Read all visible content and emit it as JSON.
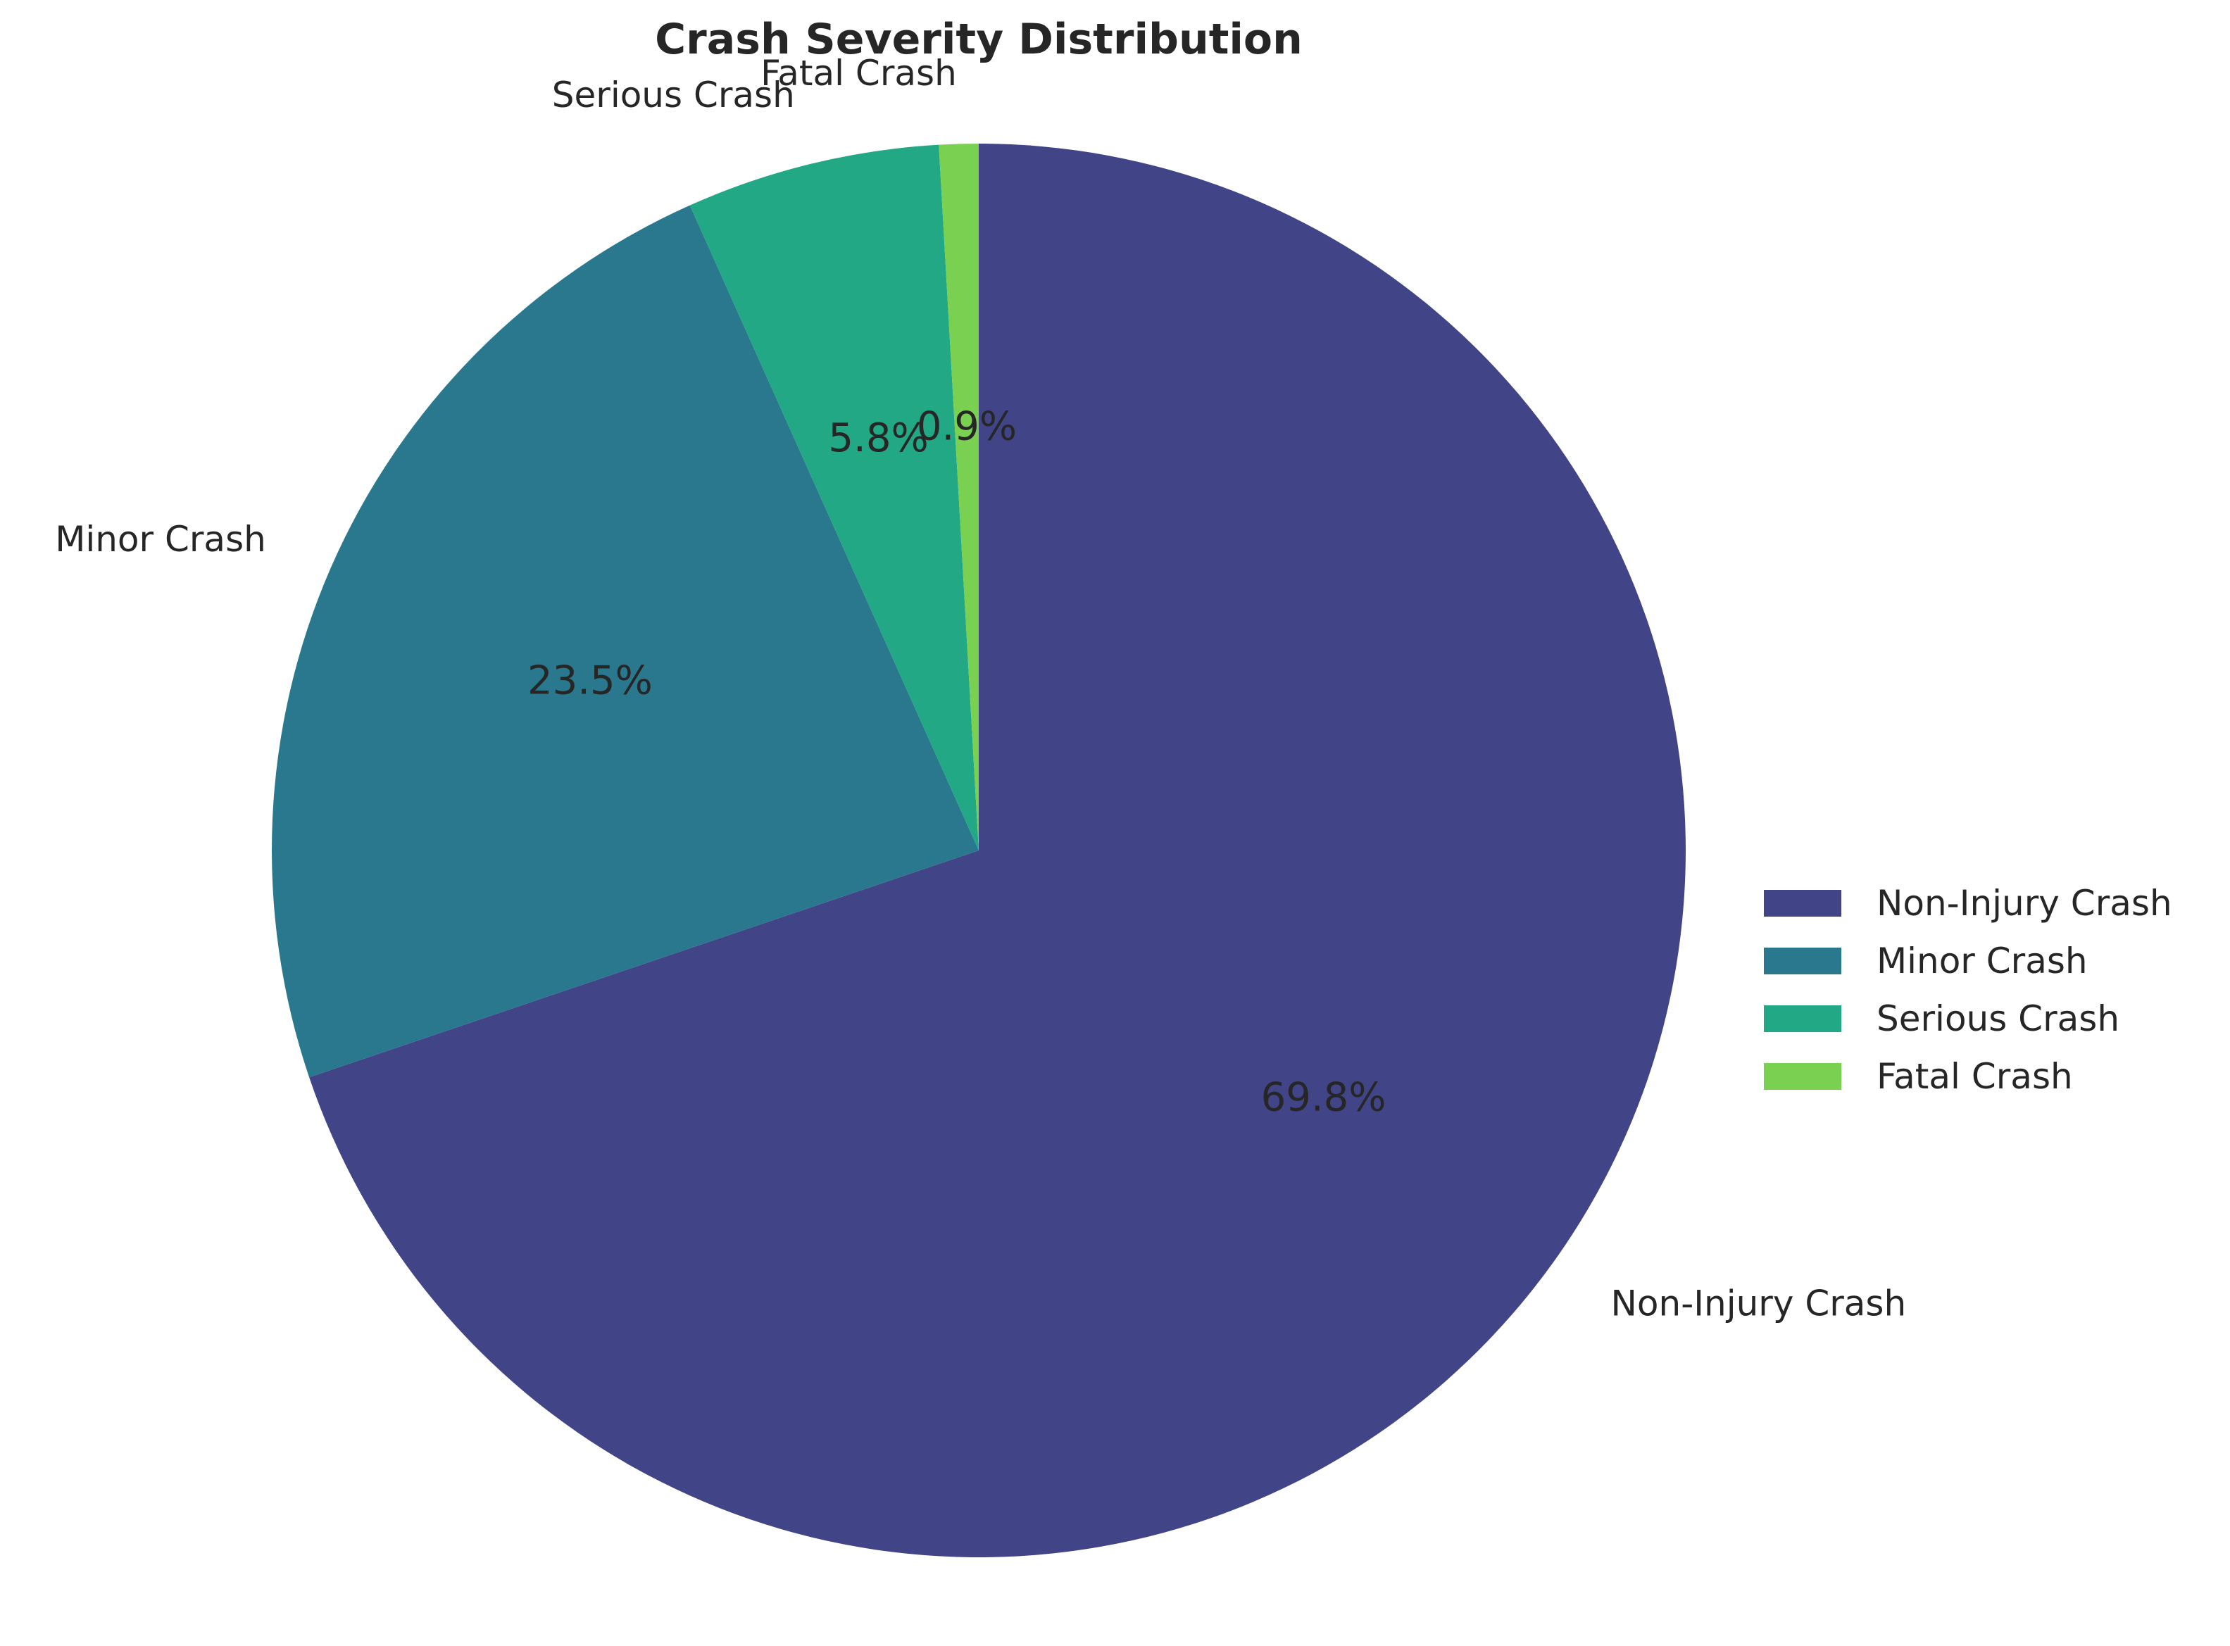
{
  "chart_data": {
    "type": "pie",
    "title": "Crash Severity Distribution",
    "categories": [
      "Non-Injury Crash",
      "Minor Crash",
      "Serious Crash",
      "Fatal Crash"
    ],
    "values": [
      69.8,
      23.5,
      5.8,
      0.9
    ],
    "value_labels": [
      "69.8%",
      "23.5%",
      "5.8%",
      "0.9%"
    ],
    "colors": [
      "#414487",
      "#2a788e",
      "#22a884",
      "#7ad151"
    ],
    "start_angle": "12 o'clock",
    "direction": "clockwise",
    "legend": {
      "placement": "right",
      "entries": [
        "Non-Injury Crash",
        "Minor Crash",
        "Serious Crash",
        "Fatal Crash"
      ]
    },
    "grid": false
  }
}
